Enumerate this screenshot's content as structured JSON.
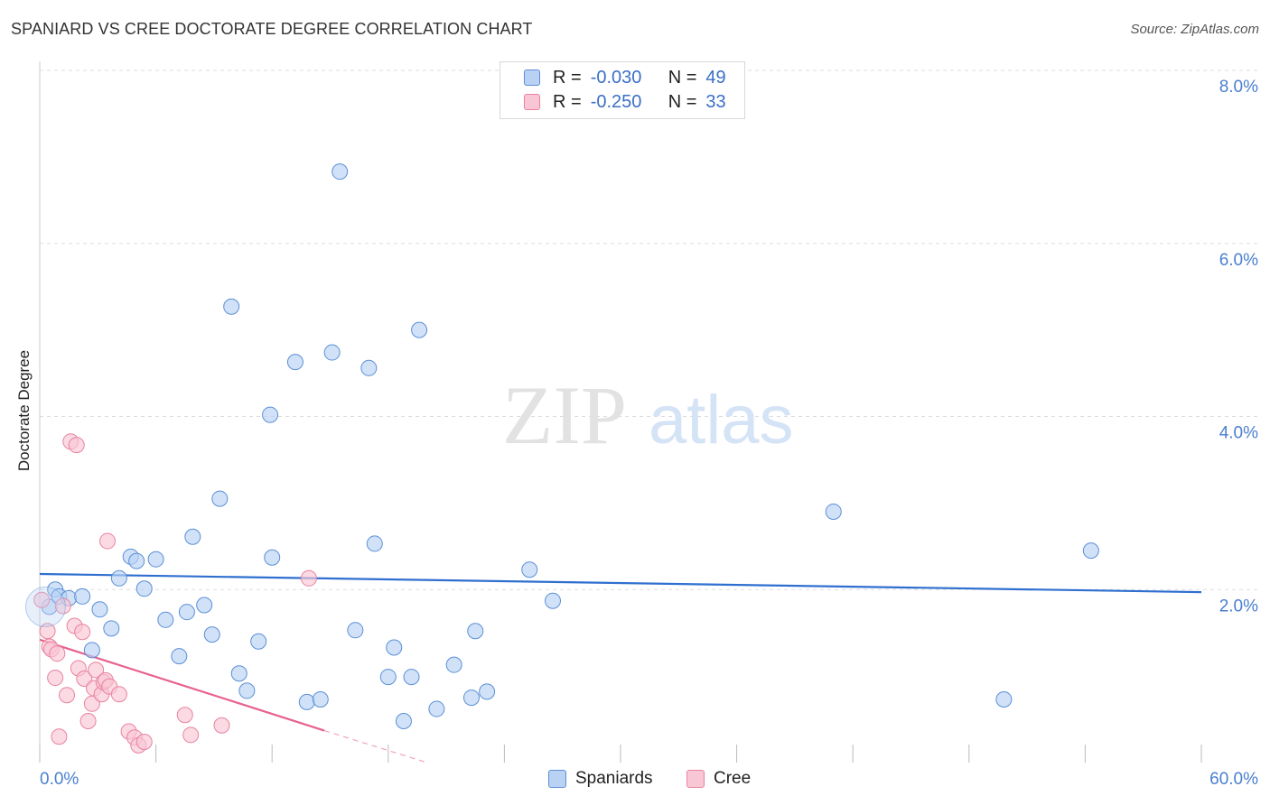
{
  "header": {
    "title": "SPANIARD VS CREE DOCTORATE DEGREE CORRELATION CHART",
    "source": "Source: ZipAtlas.com"
  },
  "watermark": {
    "zip": "ZIP",
    "atlas": "atlas"
  },
  "legend": {
    "rows": [
      {
        "r_label": "R =",
        "r_value": "-0.030",
        "n_label": "N =",
        "n_value": "49",
        "color": "#b9d2f4"
      },
      {
        "r_label": "R =",
        "r_value": "-0.250",
        "n_label": "N =",
        "n_value": "33",
        "color": "#f9c6d6"
      }
    ]
  },
  "bottom_legend": {
    "items": [
      "Spaniards",
      "Cree"
    ]
  },
  "colors": {
    "blue_fill": "#b9d2f4",
    "blue_stroke": "#5b8fd6",
    "blue_line": "#2f6fd0",
    "pink_fill": "#f9c6d6",
    "pink_stroke": "#e9829f",
    "pink_line": "#e8628f",
    "tick": "#4a7fd0"
  },
  "chart_data": {
    "type": "scatter",
    "title": "SPANIARD VS CREE DOCTORATE DEGREE CORRELATION CHART",
    "xlabel": "",
    "ylabel": "Doctorate Degree",
    "xlim": [
      0,
      60
    ],
    "ylim": [
      0,
      8
    ],
    "x_tick_labels": [
      "0.0%",
      "60.0%"
    ],
    "y_tick_labels": [
      "2.0%",
      "4.0%",
      "6.0%",
      "8.0%"
    ],
    "y_ticks": [
      2,
      4,
      6,
      8
    ],
    "grid": true,
    "legend_position": "top-center",
    "series": [
      {
        "name": "Spaniards",
        "r": -0.03,
        "n": 49,
        "trend": {
          "x": [
            0,
            60
          ],
          "y": [
            2.18,
            1.97
          ]
        },
        "points": [
          [
            0.5,
            1.8
          ],
          [
            0.8,
            2.0
          ],
          [
            1.0,
            1.92
          ],
          [
            1.5,
            1.9
          ],
          [
            2.2,
            1.92
          ],
          [
            2.7,
            1.3
          ],
          [
            3.1,
            1.77
          ],
          [
            3.7,
            1.55
          ],
          [
            4.1,
            2.13
          ],
          [
            4.7,
            2.38
          ],
          [
            5.0,
            2.33
          ],
          [
            5.4,
            2.01
          ],
          [
            6.0,
            2.35
          ],
          [
            6.5,
            1.65
          ],
          [
            7.2,
            1.23
          ],
          [
            7.6,
            1.74
          ],
          [
            7.9,
            2.61
          ],
          [
            8.5,
            1.82
          ],
          [
            8.9,
            1.48
          ],
          [
            9.3,
            3.05
          ],
          [
            9.9,
            5.27
          ],
          [
            10.3,
            1.03
          ],
          [
            10.7,
            0.83
          ],
          [
            11.3,
            1.4
          ],
          [
            11.9,
            4.02
          ],
          [
            12.0,
            2.37
          ],
          [
            13.2,
            4.63
          ],
          [
            13.8,
            0.7
          ],
          [
            14.5,
            0.73
          ],
          [
            15.1,
            4.74
          ],
          [
            15.5,
            6.83
          ],
          [
            16.3,
            1.53
          ],
          [
            17.0,
            4.56
          ],
          [
            17.3,
            2.53
          ],
          [
            18.0,
            0.99
          ],
          [
            18.3,
            1.33
          ],
          [
            18.8,
            0.48
          ],
          [
            19.2,
            0.99
          ],
          [
            19.6,
            5.0
          ],
          [
            20.5,
            0.62
          ],
          [
            21.4,
            1.13
          ],
          [
            22.3,
            0.75
          ],
          [
            22.5,
            1.52
          ],
          [
            23.1,
            0.82
          ],
          [
            25.3,
            2.23
          ],
          [
            26.5,
            1.87
          ],
          [
            41.0,
            2.9
          ],
          [
            49.8,
            0.73
          ],
          [
            54.3,
            2.45
          ]
        ]
      },
      {
        "name": "Cree",
        "r": -0.25,
        "n": 33,
        "trend": {
          "x": [
            0,
            14.7
          ],
          "y": [
            1.42,
            0.37
          ]
        },
        "trend_dashed": {
          "x": [
            14.7,
            20.0
          ],
          "y": [
            0.37,
            0.0
          ]
        },
        "points": [
          [
            0.1,
            1.88
          ],
          [
            0.4,
            1.52
          ],
          [
            0.5,
            1.34
          ],
          [
            0.6,
            1.31
          ],
          [
            0.8,
            0.98
          ],
          [
            0.9,
            1.26
          ],
          [
            1.0,
            0.3
          ],
          [
            1.2,
            1.81
          ],
          [
            1.4,
            0.78
          ],
          [
            1.6,
            3.71
          ],
          [
            1.8,
            1.58
          ],
          [
            1.9,
            3.67
          ],
          [
            2.0,
            1.09
          ],
          [
            2.2,
            1.51
          ],
          [
            2.3,
            0.97
          ],
          [
            2.5,
            0.48
          ],
          [
            2.7,
            0.68
          ],
          [
            2.8,
            0.86
          ],
          [
            2.9,
            1.07
          ],
          [
            3.2,
            0.79
          ],
          [
            3.3,
            0.93
          ],
          [
            3.4,
            0.95
          ],
          [
            3.5,
            2.56
          ],
          [
            3.6,
            0.88
          ],
          [
            4.1,
            0.79
          ],
          [
            4.6,
            0.36
          ],
          [
            4.9,
            0.29
          ],
          [
            5.1,
            0.2
          ],
          [
            5.4,
            0.24
          ],
          [
            7.5,
            0.55
          ],
          [
            7.8,
            0.32
          ],
          [
            9.4,
            0.43
          ],
          [
            13.9,
            2.13
          ]
        ]
      }
    ]
  }
}
